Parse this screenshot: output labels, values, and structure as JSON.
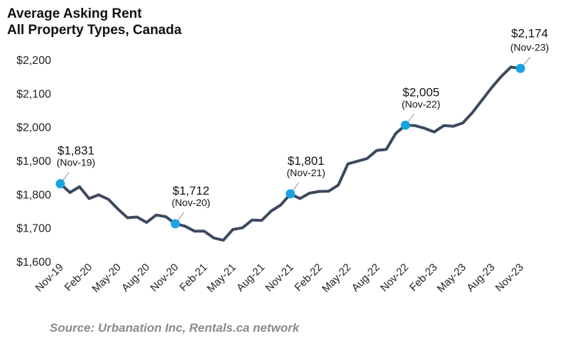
{
  "chart_data": {
    "type": "line",
    "title": "Average Asking Rent",
    "subtitle": "All Property Types, Canada",
    "xlabel": "",
    "ylabel": "",
    "ylim": [
      1600,
      2200
    ],
    "yticks": [
      "$1,600",
      "$1,700",
      "$1,800",
      "$1,900",
      "$2,000",
      "$2,100",
      "$2,200"
    ],
    "ytick_values": [
      1600,
      1700,
      1800,
      1900,
      2000,
      2100,
      2200
    ],
    "xticks": [
      "Nov-19",
      "Feb-20",
      "May-20",
      "Aug-20",
      "Nov-20",
      "Feb-21",
      "May-21",
      "Aug-21",
      "Nov-21",
      "Feb-22",
      "May-22",
      "Aug-22",
      "Nov-22",
      "Feb-23",
      "May-23",
      "Aug-23",
      "Nov-23"
    ],
    "grid": false,
    "legend": "none",
    "series": [
      {
        "color": "#3d4a5e",
        "x": [
          "Nov-19",
          "Dec-19",
          "Jan-20",
          "Feb-20",
          "Mar-20",
          "Apr-20",
          "May-20",
          "Jun-20",
          "Jul-20",
          "Aug-20",
          "Sep-20",
          "Oct-20",
          "Nov-20",
          "Dec-20",
          "Jan-21",
          "Feb-21",
          "Mar-21",
          "Apr-21",
          "May-21",
          "Jun-21",
          "Jul-21",
          "Aug-21",
          "Sep-21",
          "Oct-21",
          "Nov-21",
          "Dec-21",
          "Jan-22",
          "Feb-22",
          "Mar-22",
          "Apr-22",
          "May-22",
          "Jun-22",
          "Jul-22",
          "Aug-22",
          "Sep-22",
          "Oct-22",
          "Nov-22",
          "Dec-22",
          "Jan-23",
          "Feb-23",
          "Mar-23",
          "Apr-23",
          "May-23",
          "Jun-23",
          "Jul-23",
          "Aug-23",
          "Sep-23",
          "Oct-23",
          "Nov-23"
        ],
        "values": [
          1831,
          1805,
          1822,
          1787,
          1798,
          1785,
          1756,
          1730,
          1732,
          1716,
          1738,
          1733,
          1712,
          1705,
          1690,
          1690,
          1670,
          1663,
          1695,
          1700,
          1723,
          1722,
          1750,
          1768,
          1801,
          1787,
          1803,
          1808,
          1809,
          1827,
          1890,
          1898,
          1906,
          1930,
          1933,
          1981,
          2005,
          2004,
          1996,
          1985,
          2004,
          2002,
          2012,
          2043,
          2080,
          2117,
          2150,
          2178,
          2174
        ]
      }
    ],
    "annotations": [
      {
        "x": "Nov-19",
        "value_label": "$1,831",
        "date_label": "(Nov-19)"
      },
      {
        "x": "Nov-20",
        "value_label": "$1,712",
        "date_label": "(Nov-20)"
      },
      {
        "x": "Nov-21",
        "value_label": "$1,801",
        "date_label": "(Nov-21)"
      },
      {
        "x": "Nov-22",
        "value_label": "$2,005",
        "date_label": "(Nov-22)"
      },
      {
        "x": "Nov-23",
        "value_label": "$2,174",
        "date_label": "(Nov-23)"
      }
    ],
    "marker_color": "#1aa3e0",
    "source": "Source: Urbanation Inc, Rentals.ca network"
  }
}
